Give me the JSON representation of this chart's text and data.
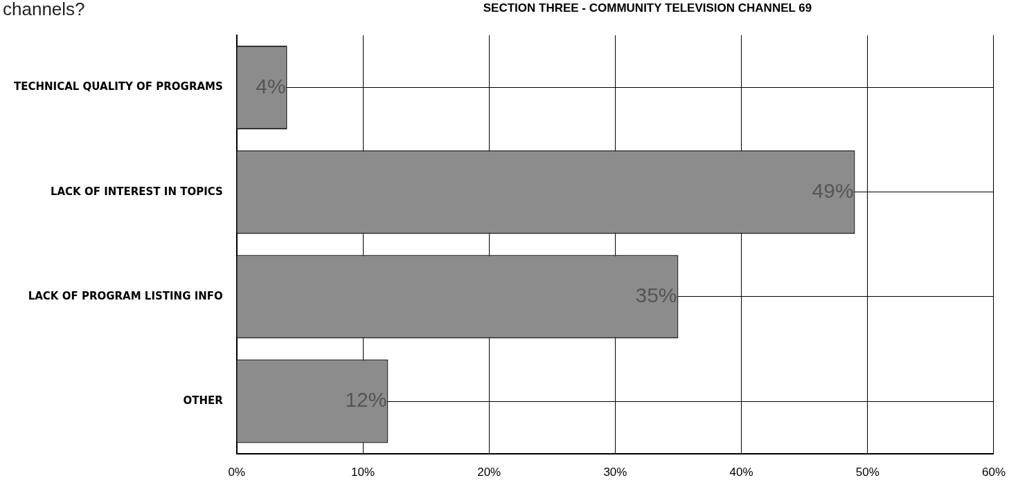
{
  "chart_data": {
    "type": "bar",
    "orientation": "horizontal",
    "title": "SECTION THREE - COMMUNITY TELEVISION CHANNEL 69",
    "annotations": [
      "channels?"
    ],
    "categories": [
      "TECHNICAL QUALITY OF PROGRAMS",
      "LACK OF INTEREST IN TOPICS",
      "LACK OF PROGRAM LISTING INFO",
      "OTHER"
    ],
    "values": [
      4,
      49,
      35,
      12
    ],
    "color": "#8c8c8c",
    "data_labels": true,
    "value_labels": [
      "4%",
      "49%",
      "35%",
      "12%"
    ],
    "xlim": [
      0,
      60
    ],
    "xticks": [
      {
        "value": 0,
        "label": "0%"
      },
      {
        "value": 10,
        "label": "10%"
      },
      {
        "value": 20,
        "label": "20%"
      },
      {
        "value": 30,
        "label": "30%"
      },
      {
        "value": 40,
        "label": "40%"
      },
      {
        "value": 50,
        "label": "50%"
      },
      {
        "value": 60,
        "label": "60%"
      }
    ],
    "grid": true,
    "legend": false
  }
}
